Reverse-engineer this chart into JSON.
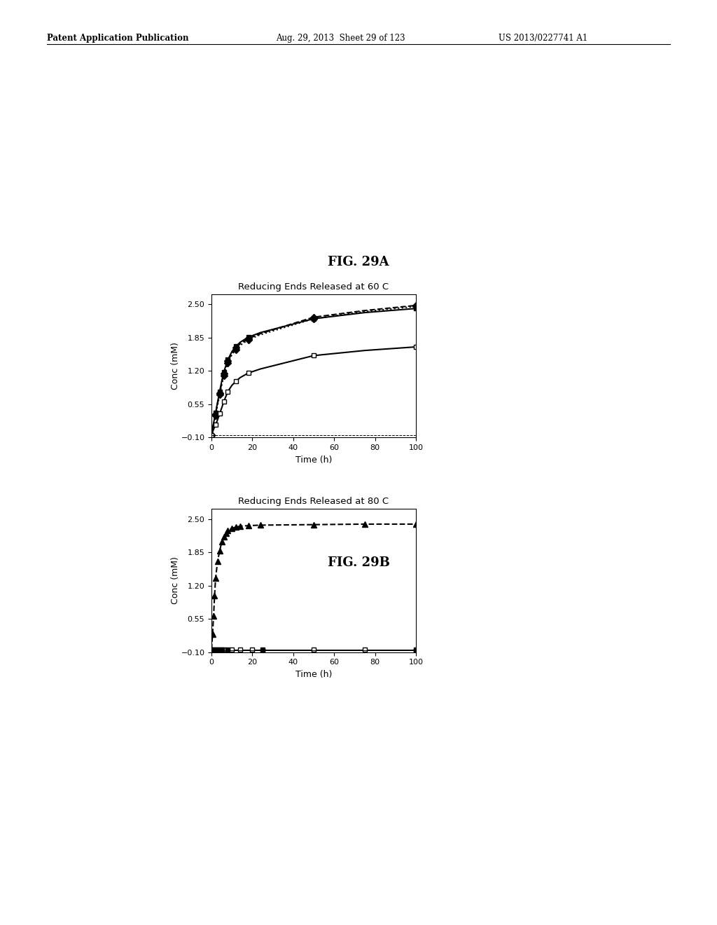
{
  "fig29a": {
    "title_fig": "FIG. 29A",
    "title_chart": "Reducing Ends Released at 60 C",
    "xlabel": "Time (h)",
    "ylabel": "Conc (mM)",
    "xlim": [
      0,
      100
    ],
    "ylim": [
      -0.1,
      2.7
    ],
    "yticks": [
      -0.1,
      0.55,
      1.2,
      1.85,
      2.5
    ],
    "xticks": [
      0,
      20,
      40,
      60,
      80,
      100
    ],
    "series": [
      {
        "name": "solid_filled_square",
        "x": [
          0,
          1,
          2,
          3,
          4,
          5,
          6,
          7,
          8,
          10,
          12,
          14,
          18,
          24,
          50,
          75,
          100
        ],
        "y": [
          -0.05,
          0.18,
          0.38,
          0.6,
          0.8,
          1.0,
          1.18,
          1.3,
          1.42,
          1.58,
          1.68,
          1.76,
          1.86,
          1.95,
          2.22,
          2.34,
          2.42
        ],
        "linestyle": "solid",
        "marker": "s",
        "markerfilled": true,
        "color": "black",
        "linewidth": 1.5,
        "markersize": 5
      },
      {
        "name": "dashed_filled_diamond",
        "x": [
          0,
          1,
          2,
          3,
          4,
          5,
          6,
          7,
          8,
          10,
          12,
          14,
          18,
          24,
          50,
          75,
          100
        ],
        "y": [
          -0.05,
          0.16,
          0.36,
          0.57,
          0.77,
          0.97,
          1.15,
          1.27,
          1.39,
          1.55,
          1.65,
          1.73,
          1.83,
          1.93,
          2.25,
          2.38,
          2.48
        ],
        "linestyle": "dashed",
        "marker": "D",
        "markerfilled": true,
        "color": "black",
        "linewidth": 1.5,
        "markersize": 5
      },
      {
        "name": "dotted_filled_diamond",
        "x": [
          0,
          1,
          2,
          3,
          4,
          5,
          6,
          7,
          8,
          10,
          12,
          14,
          18,
          24,
          50,
          75,
          100
        ],
        "y": [
          -0.05,
          0.14,
          0.33,
          0.54,
          0.74,
          0.93,
          1.11,
          1.24,
          1.36,
          1.52,
          1.62,
          1.7,
          1.81,
          1.91,
          2.22,
          2.36,
          2.46
        ],
        "linestyle": "dotted",
        "marker": "D",
        "markerfilled": true,
        "color": "black",
        "linewidth": 1.5,
        "markersize": 5
      },
      {
        "name": "solid_open_square",
        "x": [
          0,
          1,
          2,
          3,
          4,
          5,
          6,
          7,
          8,
          10,
          12,
          14,
          18,
          24,
          50,
          75,
          100
        ],
        "y": [
          -0.05,
          0.06,
          0.15,
          0.25,
          0.37,
          0.48,
          0.6,
          0.7,
          0.8,
          0.92,
          1.0,
          1.07,
          1.16,
          1.24,
          1.5,
          1.6,
          1.67
        ],
        "linestyle": "solid",
        "marker": "s",
        "markerfilled": false,
        "color": "black",
        "linewidth": 1.5,
        "markersize": 5
      },
      {
        "name": "flat_dashed_line",
        "x": [
          0,
          100
        ],
        "y": [
          -0.05,
          -0.05
        ],
        "linestyle": "dashed",
        "marker": null,
        "markerfilled": false,
        "color": "black",
        "linewidth": 0.7,
        "markersize": 0
      }
    ]
  },
  "fig29b": {
    "title_fig": "FIG. 29B",
    "title_chart": "Reducing Ends Released at 80 C",
    "xlabel": "Time (h)",
    "ylabel": "Conc (mM)",
    "xlim": [
      0,
      100
    ],
    "ylim": [
      -0.1,
      2.7
    ],
    "yticks": [
      -0.1,
      0.55,
      1.2,
      1.85,
      2.5
    ],
    "xticks": [
      0,
      20,
      40,
      60,
      80,
      100
    ],
    "series": [
      {
        "name": "dashed_filled_triangle",
        "x": [
          0,
          0.5,
          1,
          1.5,
          2,
          3,
          4,
          5,
          6,
          7,
          8,
          10,
          12,
          14,
          18,
          24,
          50,
          75,
          100
        ],
        "y": [
          -0.05,
          0.25,
          0.6,
          1.0,
          1.35,
          1.68,
          1.88,
          2.05,
          2.15,
          2.22,
          2.27,
          2.32,
          2.34,
          2.36,
          2.37,
          2.38,
          2.39,
          2.4,
          2.4
        ],
        "linestyle": "dashed",
        "marker": "^",
        "markerfilled": true,
        "color": "black",
        "linewidth": 1.5,
        "markersize": 6
      },
      {
        "name": "flat_solid_line1",
        "x": [
          0,
          100
        ],
        "y": [
          -0.05,
          -0.05
        ],
        "linestyle": "solid",
        "marker": null,
        "markerfilled": false,
        "color": "black",
        "linewidth": 0.7,
        "markersize": 0
      },
      {
        "name": "flat_solid_line2",
        "x": [
          0,
          100
        ],
        "y": [
          -0.07,
          -0.07
        ],
        "linestyle": "solid",
        "marker": null,
        "markerfilled": false,
        "color": "black",
        "linewidth": 0.7,
        "markersize": 0
      },
      {
        "name": "flat_open_squares",
        "x": [
          0,
          1,
          2,
          3,
          4,
          5,
          6,
          8,
          10,
          14,
          20,
          25,
          50,
          75,
          100
        ],
        "y": [
          -0.05,
          -0.05,
          -0.05,
          -0.05,
          -0.05,
          -0.05,
          -0.05,
          -0.05,
          -0.05,
          -0.05,
          -0.05,
          -0.05,
          -0.05,
          -0.05,
          -0.05
        ],
        "linestyle": "solid",
        "marker": "s",
        "markerfilled": false,
        "color": "black",
        "linewidth": 0.7,
        "markersize": 5
      },
      {
        "name": "flat_filled_squares",
        "x": [
          0,
          1,
          2,
          3,
          5,
          8,
          25,
          100
        ],
        "y": [
          -0.07,
          -0.07,
          -0.07,
          -0.07,
          -0.07,
          -0.07,
          -0.07,
          -0.07
        ],
        "linestyle": "solid",
        "marker": "s",
        "markerfilled": true,
        "color": "black",
        "linewidth": 0.7,
        "markersize": 5
      }
    ]
  },
  "page_header_left": "Patent Application Publication",
  "page_header_mid": "Aug. 29, 2013  Sheet 29 of 123",
  "page_header_right": "US 2013/0227741 A1",
  "background_color": "#ffffff",
  "text_color": "#000000"
}
